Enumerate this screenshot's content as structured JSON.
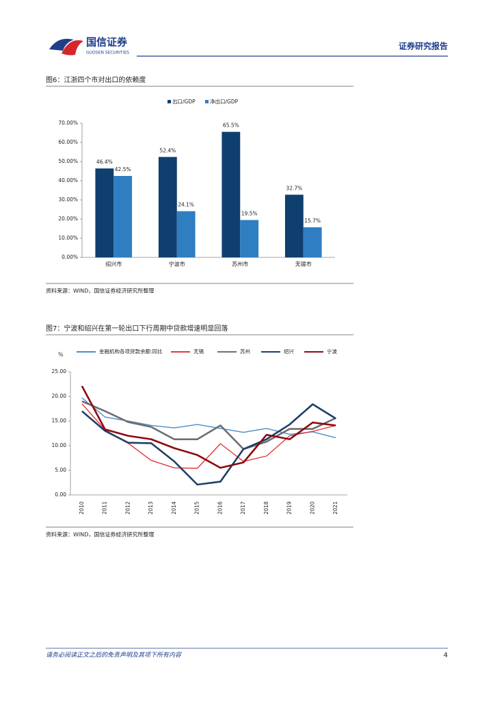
{
  "header": {
    "logo_cn": "国信证券",
    "logo_en": "GUOSEN SECURITIES",
    "report_label": "证券研究报告"
  },
  "chart_data": [
    {
      "type": "bar",
      "title": "图6：江浙四个市对出口的依赖度",
      "categories": [
        "绍兴市",
        "宁波市",
        "苏州市",
        "无锡市"
      ],
      "series": [
        {
          "name": "出口/GDP",
          "color": "#0f3f6e",
          "values": [
            46.4,
            52.4,
            65.5,
            32.7
          ],
          "value_labels": [
            "46.4%",
            "52.4%",
            "65.5%",
            "32.7%"
          ]
        },
        {
          "name": "净出口/GDP",
          "color": "#2f7ec2",
          "values": [
            42.5,
            24.1,
            19.5,
            15.7
          ],
          "value_labels": [
            "42.5%",
            "24.1%",
            "19.5%",
            "15.7%"
          ]
        }
      ],
      "ylim": [
        0,
        70
      ],
      "yticks": [
        {
          "value": 0,
          "label": "0.00%"
        },
        {
          "value": 10,
          "label": "10.00%"
        },
        {
          "value": 20,
          "label": "20.00%"
        },
        {
          "value": 30,
          "label": "30.00%"
        },
        {
          "value": 40,
          "label": "40.00%"
        },
        {
          "value": 50,
          "label": "50.00%"
        },
        {
          "value": 60,
          "label": "60.00%"
        },
        {
          "value": 70,
          "label": "70.00%"
        }
      ],
      "grid": false,
      "source": "资料来源：WIND，国信证券经济研究所整理"
    },
    {
      "type": "line",
      "title": "图7：宁波和绍兴在第一轮出口下行周期中贷款增速明显回落",
      "y_label": "%",
      "categories": [
        "2010",
        "2011",
        "2012",
        "2013",
        "2014",
        "2015",
        "2016",
        "2017",
        "2018",
        "2019",
        "2020",
        "2021"
      ],
      "series": [
        {
          "name": "金融机构各项贷款余额:同比",
          "color": "#4a8ccb",
          "values": [
            19.7,
            15.8,
            15.0,
            14.1,
            13.6,
            14.3,
            13.5,
            12.7,
            13.5,
            12.3,
            12.8,
            11.6
          ]
        },
        {
          "name": "无锡",
          "color": "#e2383a",
          "values": [
            18.5,
            13.2,
            10.5,
            7.0,
            5.5,
            5.4,
            10.4,
            6.8,
            7.9,
            12.0,
            12.9,
            14.1
          ]
        },
        {
          "name": "苏州",
          "color": "#6e6e6e",
          "values": [
            19.0,
            17.0,
            14.8,
            13.8,
            11.3,
            11.3,
            14.1,
            9.3,
            10.8,
            13.4,
            13.4,
            15.6
          ]
        },
        {
          "name": "绍兴",
          "color": "#1e3f66",
          "values": [
            17.0,
            13.0,
            10.6,
            10.5,
            6.8,
            2.1,
            2.7,
            9.3,
            11.3,
            14.3,
            18.4,
            15.5
          ]
        },
        {
          "name": "宁波",
          "color": "#8b0a10",
          "values": [
            22.1,
            13.3,
            12.0,
            11.3,
            9.5,
            8.1,
            5.5,
            6.6,
            12.2,
            11.3,
            14.7,
            14.1
          ]
        }
      ],
      "ylim": [
        0,
        25
      ],
      "yticks": [
        {
          "value": 0,
          "label": "0.00"
        },
        {
          "value": 5,
          "label": "5.00"
        },
        {
          "value": 10,
          "label": "10.00"
        },
        {
          "value": 15,
          "label": "15.00"
        },
        {
          "value": 20,
          "label": "20.00"
        },
        {
          "value": 25,
          "label": "25.00"
        }
      ],
      "grid": false,
      "source": "资料来源：WIND，国信证券经济研究所整理"
    }
  ],
  "footer": {
    "disclaimer": "请务必阅读正文之后的免责声明及其项下所有内容",
    "page": "4"
  }
}
